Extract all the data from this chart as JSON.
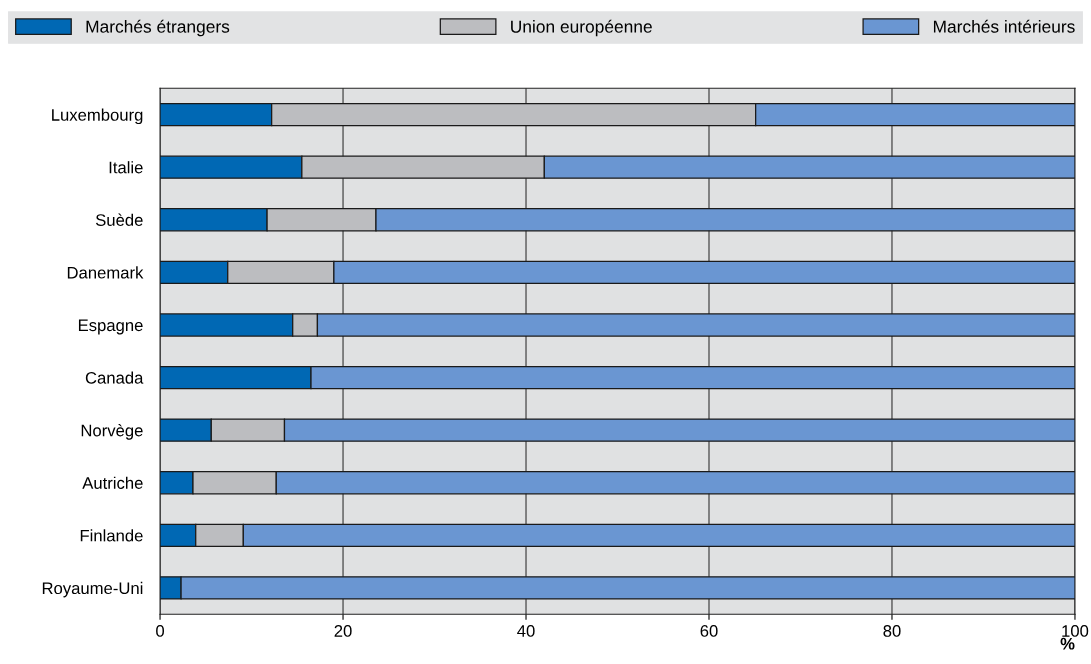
{
  "chart_data": {
    "type": "bar",
    "orientation": "horizontal",
    "stacked": true,
    "xlabel": "%",
    "categories": [
      "Luxembourg",
      "Italie",
      "Suède",
      "Danemark",
      "Espagne",
      "Canada",
      "Norvège",
      "Autriche",
      "Finlande",
      "Royaume-Uni"
    ],
    "series": [
      {
        "name": "Marchés étrangers",
        "color": "#0068b4",
        "values": [
          12.2,
          15.5,
          11.7,
          7.4,
          14.5,
          16.5,
          5.6,
          3.6,
          3.9,
          2.3
        ]
      },
      {
        "name": "Union européenne",
        "color": "#bcbdc0",
        "values": [
          52.9,
          26.5,
          11.9,
          11.6,
          2.7,
          null,
          8.0,
          9.1,
          5.2,
          null
        ]
      },
      {
        "name": "Marchés intérieurs",
        "color": "#6a96d2",
        "values": [
          34.9,
          58.0,
          76.4,
          81.0,
          82.8,
          83.5,
          86.4,
          87.3,
          90.9,
          97.7
        ]
      }
    ],
    "xlim": [
      0,
      100
    ],
    "xticks": [
      0,
      20,
      40,
      60,
      80,
      100
    ],
    "grid": "x",
    "legend": "top"
  }
}
